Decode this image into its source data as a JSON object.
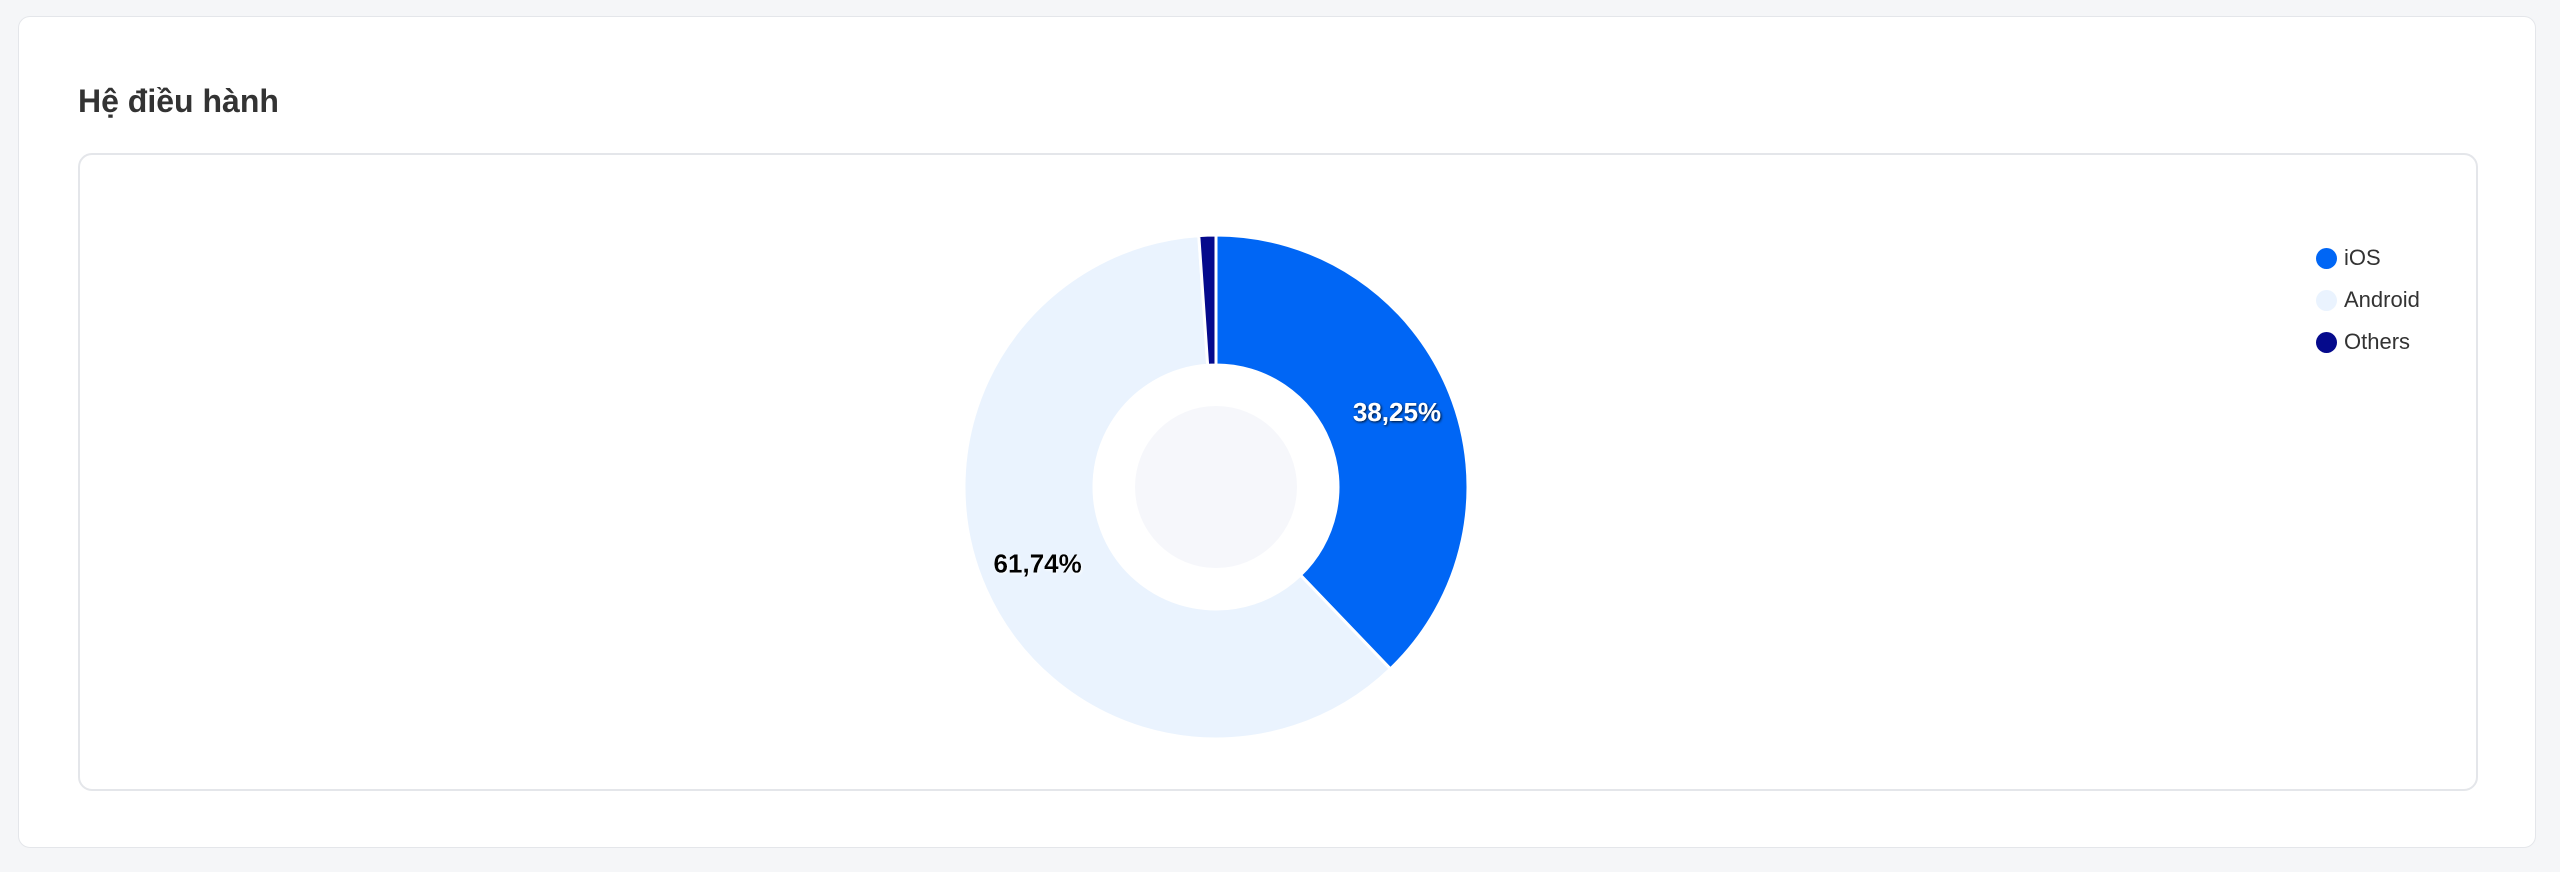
{
  "card": {
    "title": "Hệ điều hành"
  },
  "chart_data": {
    "type": "donut",
    "title": "Hệ điều hành",
    "categories": [
      "iOS",
      "Android",
      "Others"
    ],
    "values": [
      38.25,
      61.74,
      1.1
    ],
    "labels": [
      "38,25%",
      "61,74%",
      ""
    ],
    "colors": [
      "#0066f5",
      "#eaf3fe",
      "#050a8c"
    ],
    "label_colors": [
      "#ffffff",
      "#000000",
      "#ffffff"
    ],
    "legend": {
      "position": "top-right",
      "items": [
        {
          "label": "iOS",
          "color": "#0066f5"
        },
        {
          "label": "Android",
          "color": "#eaf3fe"
        },
        {
          "label": "Others",
          "color": "#050a8c"
        }
      ]
    }
  }
}
